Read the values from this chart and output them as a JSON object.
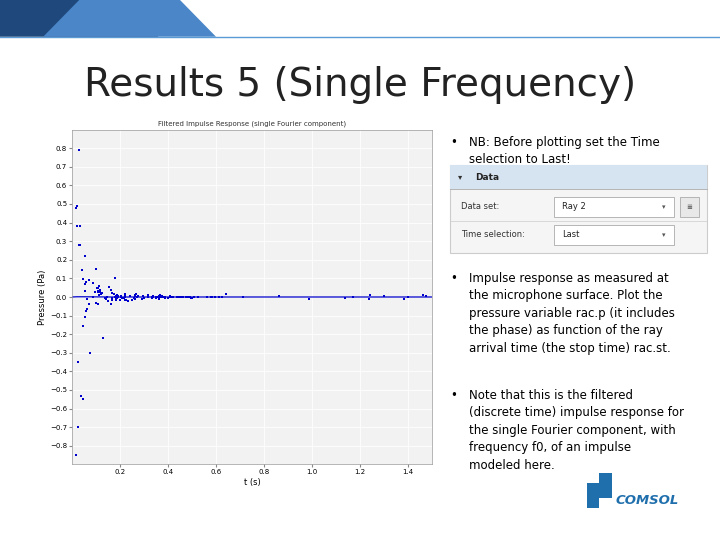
{
  "title": "Results 5 (Single Frequency)",
  "title_fontsize": 28,
  "title_color": "#222222",
  "background_color": "#ffffff",
  "header_line_color": "#5b9bd5",
  "header_bar_color": "#1f497d",
  "header_bar2_color": "#4a86c8",
  "plot_title": "Filtered Impulse Response (single Fourier component)",
  "plot_xlabel": "t (s)",
  "plot_ylabel": "Pressure (Pa)",
  "plot_xlim": [
    0,
    1.5
  ],
  "plot_ylim": [
    -0.9,
    0.9
  ],
  "plot_yticks": [
    -0.8,
    -0.7,
    -0.6,
    -0.5,
    -0.4,
    -0.3,
    -0.2,
    -0.1,
    0,
    0.1,
    0.2,
    0.3,
    0.4,
    0.5,
    0.6,
    0.7,
    0.8
  ],
  "plot_xticks": [
    0.2,
    0.4,
    0.6,
    0.8,
    1.0,
    1.2,
    1.4
  ],
  "plot_color": "#0000cc",
  "dialog_title": "Data",
  "dialog_dataset_label": "Data set:",
  "dialog_dataset_value": "Ray 2",
  "dialog_time_label": "Time selection:",
  "dialog_time_value": "Last",
  "comsol_color": "#1f6fad",
  "comsol_text": "COMSOL",
  "bullet1_line1": "NB: Before plotting set the Time",
  "bullet1_line2": "selection to Last!",
  "bullet2": "Impulse response as measured at\nthe microphone surface. Plot the\npressure variable rac.p (it includes\nthe phase) as function of the ray\narrival time (the stop time) rac.st.",
  "bullet3": "Note that this is the filtered\n(discrete time) impulse response for\nthe single Fourier component, with\nfrequency f0, of an impulse\nmodeled here."
}
